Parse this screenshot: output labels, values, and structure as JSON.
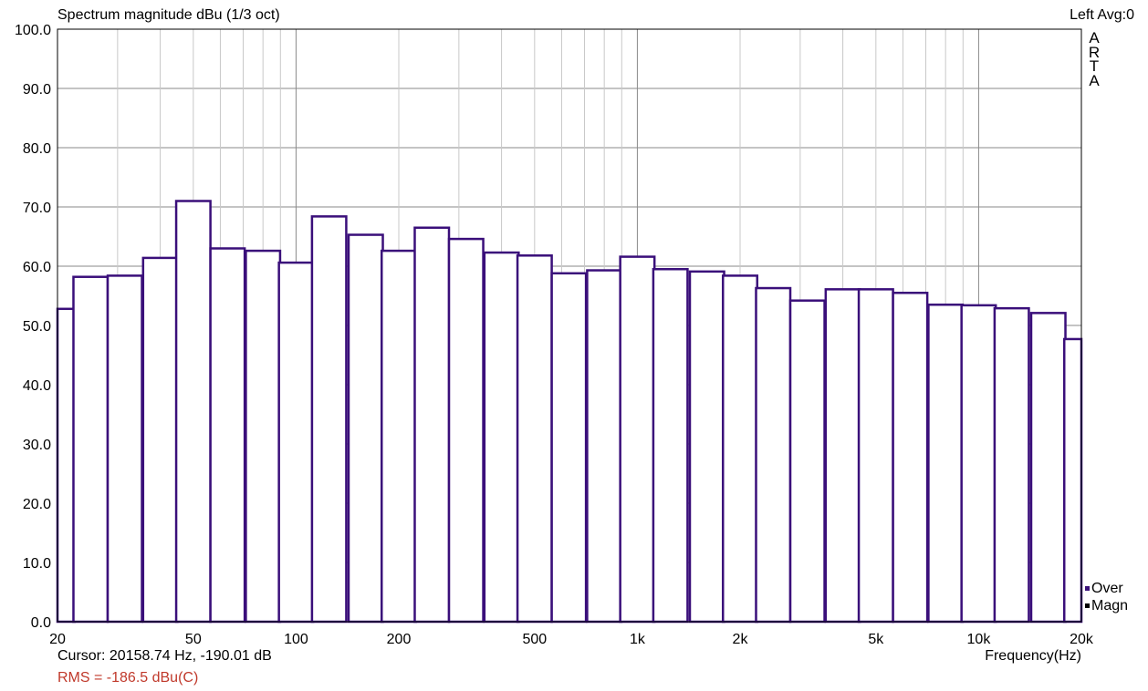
{
  "chart_data": {
    "type": "bar",
    "title": "Spectrum magnitude dBu (1/3 oct)",
    "xlabel": "Frequency(Hz)",
    "ylabel": "",
    "xscale": "log",
    "xlim": [
      20,
      20000
    ],
    "ylim": [
      0,
      100
    ],
    "grid": true,
    "yticks": [
      "0.0",
      "10.0",
      "20.0",
      "30.0",
      "40.0",
      "50.0",
      "60.0",
      "70.0",
      "80.0",
      "90.0",
      "100.0"
    ],
    "xticks": [
      {
        "value": 20,
        "label": "20"
      },
      {
        "value": 50,
        "label": "50"
      },
      {
        "value": 100,
        "label": "100"
      },
      {
        "value": 200,
        "label": "200"
      },
      {
        "value": 500,
        "label": "500"
      },
      {
        "value": 1000,
        "label": "1k"
      },
      {
        "value": 2000,
        "label": "2k"
      },
      {
        "value": 5000,
        "label": "5k"
      },
      {
        "value": 10000,
        "label": "10k"
      },
      {
        "value": 20000,
        "label": "20k"
      }
    ],
    "bands_hz": [
      20,
      25,
      31.5,
      40,
      50,
      63,
      80,
      100,
      125,
      160,
      200,
      250,
      315,
      400,
      500,
      630,
      800,
      1000,
      1250,
      1600,
      2000,
      2500,
      3150,
      4000,
      5000,
      6300,
      8000,
      10000,
      12500,
      16000,
      20000
    ],
    "values": [
      52.8,
      58.2,
      58.4,
      61.4,
      71.0,
      63.0,
      62.6,
      60.6,
      68.4,
      65.3,
      62.6,
      66.5,
      64.6,
      62.3,
      61.8,
      58.8,
      59.3,
      61.6,
      59.5,
      59.1,
      58.4,
      56.3,
      54.2,
      56.1,
      56.1,
      55.5,
      53.5,
      53.4,
      52.9,
      52.1,
      47.7
    ],
    "series": [
      {
        "name": "Over",
        "color": "#3a0f7a"
      },
      {
        "name": "Magn",
        "color": "#000000"
      }
    ],
    "legend_position": "bottom-right"
  },
  "header": {
    "title": "Spectrum magnitude dBu (1/3 oct)",
    "top_right": "Left  Avg:0",
    "side_label": [
      "A",
      "R",
      "T",
      "A"
    ]
  },
  "footer": {
    "cursor": "Cursor: 20158.74 Hz, -190.01 dB",
    "rms": "RMS = -186.5 dBu(C)",
    "rms_color": "#c0392b"
  },
  "colors": {
    "bar": "#3a0f7a",
    "grid": "#c8c8c8",
    "grid_major": "#8a8a8a"
  }
}
